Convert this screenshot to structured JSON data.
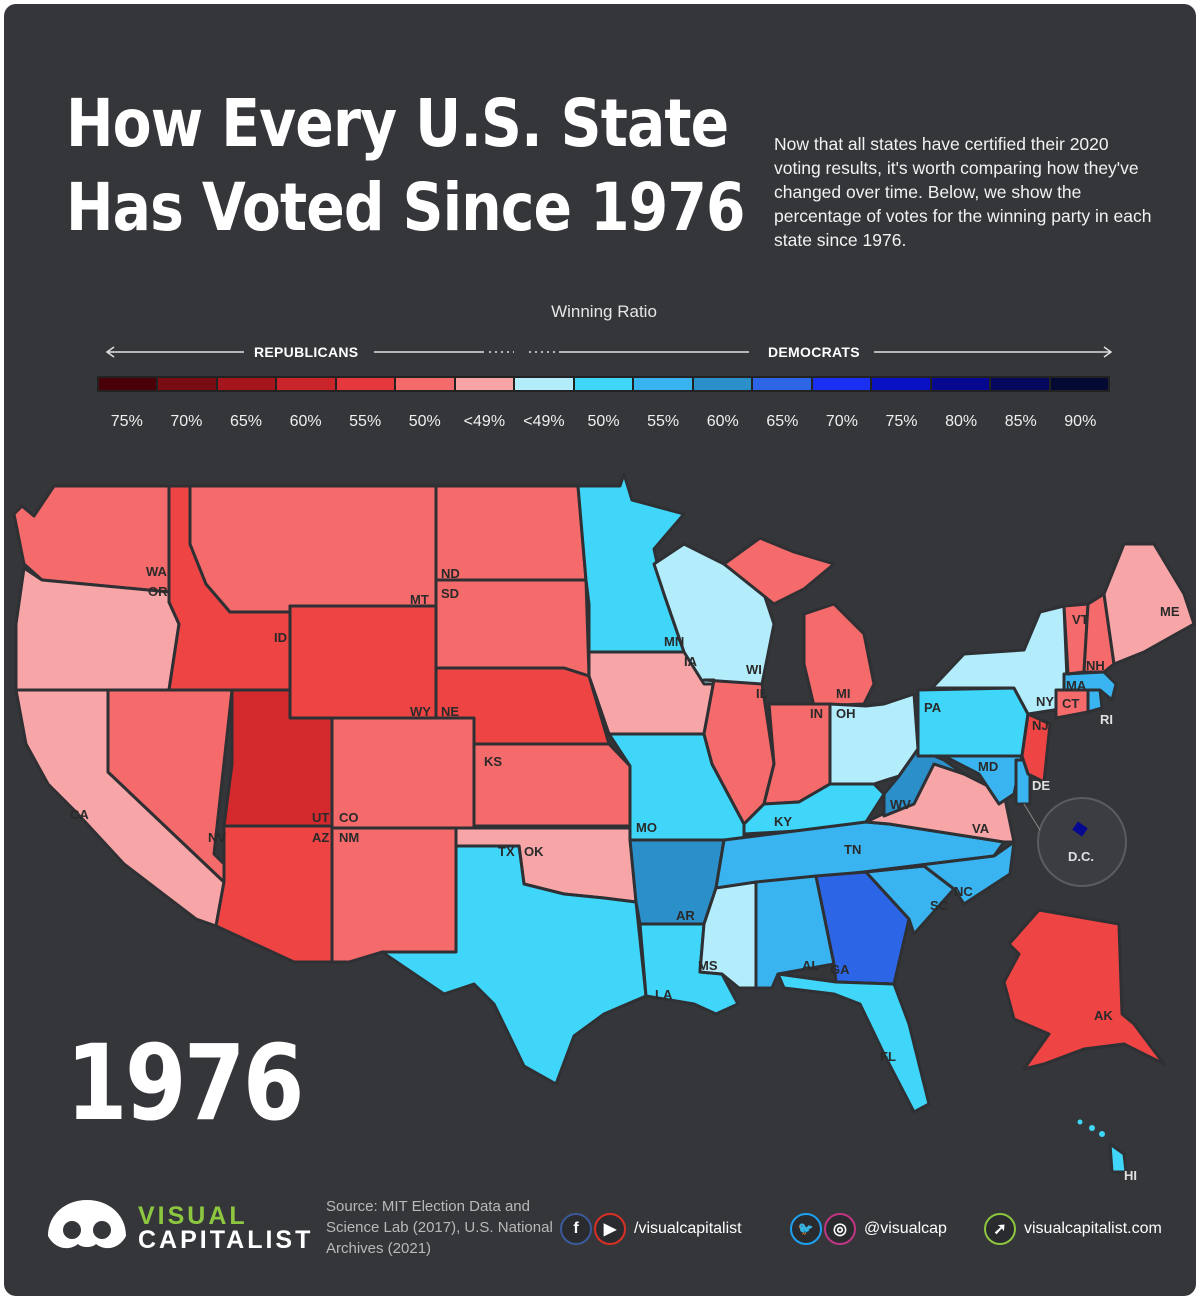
{
  "title_line1": "How Every U.S. State",
  "title_line2": "Has Voted Since 1976",
  "intro": "Now that all states have certified their 2020 voting results, it's worth comparing how they've changed over time. Below, we show the percentage of votes for the winning party in each state since 1976.",
  "legend": {
    "title": "Winning Ratio",
    "republicans": "REPUBLICANS",
    "democrats": "DEMOCRATS",
    "labels": [
      "75%",
      "70%",
      "65%",
      "60%",
      "55%",
      "50%",
      "<49%",
      "<49%",
      "50%",
      "55%",
      "60%",
      "65%",
      "70%",
      "75%",
      "80%",
      "85%",
      "90%"
    ],
    "colors": [
      "#4a0009",
      "#7a0c14",
      "#a5151b",
      "#c9252a",
      "#e5383c",
      "#f56a6a",
      "#f7a5a6",
      "#b3ecfb",
      "#3fd6f9",
      "#39b4f0",
      "#2b8fc9",
      "#2c66e6",
      "#1a2ff2",
      "#0a10c4",
      "#06088f",
      "#05095e",
      "#040a33"
    ]
  },
  "state_colors": {
    "R55": "#ee4444",
    "R50": "#f56a6a",
    "R49": "#f7a5a6",
    "R60": "#d42a2d",
    "D49": "#b3ecfb",
    "D50": "#3fd6f9",
    "D55": "#39b4f0",
    "D60": "#2b8fc9",
    "D65": "#2c66e6",
    "D80": "#06088f"
  },
  "map_labels": {
    "WA": "WA",
    "OR": "OR",
    "CA": "CA",
    "NV": "NV",
    "ID": "ID",
    "MT": "MT",
    "WY": "WY",
    "UT": "UT",
    "AZ": "AZ",
    "CO": "CO",
    "NM": "NM",
    "ND": "ND",
    "SD": "SD",
    "NE": "NE",
    "KS": "KS",
    "OK": "OK",
    "TX": "TX",
    "MN": "MN",
    "IA": "IA",
    "MO": "MO",
    "AR": "AR",
    "LA": "LA",
    "WI": "WI",
    "IL": "IL",
    "MI": "MI",
    "IN": "IN",
    "OH": "OH",
    "KY": "KY",
    "TN": "TN",
    "MS": "MS",
    "AL": "AL",
    "GA": "GA",
    "FL": "FL",
    "SC": "SC",
    "NC": "NC",
    "VA": "VA",
    "WV": "WV",
    "PA": "PA",
    "NY": "NY",
    "MD": "MD",
    "DE": "DE",
    "NJ": "NJ",
    "CT": "CT",
    "RI": "RI",
    "MA": "MA",
    "VT": "VT",
    "NH": "NH",
    "ME": "ME",
    "DC": "D.C.",
    "AK": "AK",
    "HI": "HI"
  },
  "year": "1976",
  "brand": {
    "line1": "VISUAL",
    "line2": "CAPITALIST"
  },
  "source": "Source: MIT Election Data and Science Lab (2017), U.S. National Archives (2021)",
  "social": {
    "facebook_glyph": "f",
    "youtube_glyph": "▶",
    "handle1": "/visualcapitalist",
    "twitter_glyph": "🐦",
    "instagram_glyph": "◎",
    "handle2": "@visualcap",
    "web_glyph": "➚",
    "website": "visualcapitalist.com"
  },
  "icons": [
    "facebook-icon",
    "youtube-icon",
    "twitter-icon",
    "instagram-icon",
    "cursor-icon",
    "logo-icon"
  ]
}
